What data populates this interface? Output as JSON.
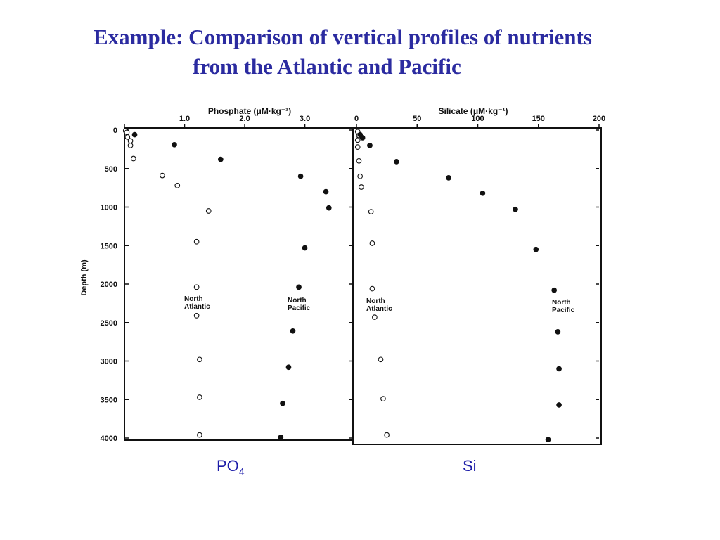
{
  "slide": {
    "title_line_1": "Example: Comparison of vertical profiles of nutrients",
    "title_line_2": "from the Atlantic and Pacific",
    "caption_left": "PO",
    "caption_left_sub": "4",
    "caption_right": "Si"
  },
  "colors": {
    "title": "#2b2ba0",
    "caption": "#1c1ca8",
    "ink": "#111111"
  },
  "chart_data": [
    {
      "type": "scatter",
      "title": "",
      "xlabel": "Phosphate (μM·kg⁻¹)",
      "ylabel": "Depth (m)",
      "xlim": [
        0,
        3.8
      ],
      "ylim": [
        4000,
        0
      ],
      "x_axis_position": "top",
      "x_ticks": [
        0,
        1.0,
        2.0,
        3.0
      ],
      "x_tick_labels": [
        "",
        "1.0",
        "2.0",
        "3.0"
      ],
      "y_ticks": [
        0,
        500,
        1000,
        1500,
        2000,
        2500,
        3000,
        3500,
        4000
      ],
      "y_tick_labels": [
        "0",
        "500",
        "1000",
        "1500",
        "2000",
        "2500",
        "3000",
        "3500",
        "4000"
      ],
      "grid": false,
      "series": [
        {
          "name": "North Atlantic",
          "marker": "open-circle",
          "points": [
            {
              "x": 0.02,
              "y": 10
            },
            {
              "x": 0.04,
              "y": 30
            },
            {
              "x": 0.05,
              "y": 90
            },
            {
              "x": 0.1,
              "y": 140
            },
            {
              "x": 0.1,
              "y": 200
            },
            {
              "x": 0.15,
              "y": 370
            },
            {
              "x": 0.63,
              "y": 590
            },
            {
              "x": 0.88,
              "y": 720
            },
            {
              "x": 1.4,
              "y": 1050
            },
            {
              "x": 1.2,
              "y": 1450
            },
            {
              "x": 1.2,
              "y": 2040
            },
            {
              "x": 1.2,
              "y": 2410
            },
            {
              "x": 1.25,
              "y": 2980
            },
            {
              "x": 1.25,
              "y": 3470
            },
            {
              "x": 1.25,
              "y": 3960
            }
          ]
        },
        {
          "name": "North Pacific",
          "marker": "filled-circle",
          "points": [
            {
              "x": 0.17,
              "y": 60
            },
            {
              "x": 0.83,
              "y": 190
            },
            {
              "x": 1.6,
              "y": 380
            },
            {
              "x": 2.93,
              "y": 600
            },
            {
              "x": 3.35,
              "y": 800
            },
            {
              "x": 3.4,
              "y": 1010
            },
            {
              "x": 3.0,
              "y": 1530
            },
            {
              "x": 2.9,
              "y": 2040
            },
            {
              "x": 2.8,
              "y": 2610
            },
            {
              "x": 2.73,
              "y": 3080
            },
            {
              "x": 2.63,
              "y": 3550
            },
            {
              "x": 2.6,
              "y": 3990
            }
          ]
        }
      ],
      "annotations": [
        {
          "text": "North Atlantic",
          "near": "North Atlantic series"
        },
        {
          "text": "North Pacific",
          "near": "North Pacific series"
        }
      ]
    },
    {
      "type": "scatter",
      "title": "",
      "xlabel": "Silicate (μM·kg⁻¹)",
      "ylabel": "Depth (m)",
      "xlim": [
        0,
        200
      ],
      "ylim": [
        4000,
        0
      ],
      "x_axis_position": "top",
      "x_ticks": [
        0,
        50,
        100,
        150,
        200
      ],
      "x_tick_labels": [
        "0",
        "50",
        "100",
        "150",
        "200"
      ],
      "y_ticks": [
        0,
        500,
        1000,
        1500,
        2000,
        2500,
        3000,
        3500,
        4000
      ],
      "grid": false,
      "series": [
        {
          "name": "North Atlantic",
          "marker": "open-circle",
          "points": [
            {
              "x": 1,
              "y": 20
            },
            {
              "x": 2,
              "y": 70
            },
            {
              "x": 1,
              "y": 130
            },
            {
              "x": 1,
              "y": 220
            },
            {
              "x": 2,
              "y": 400
            },
            {
              "x": 3,
              "y": 600
            },
            {
              "x": 4,
              "y": 740
            },
            {
              "x": 12,
              "y": 1060
            },
            {
              "x": 13,
              "y": 1470
            },
            {
              "x": 13,
              "y": 2060
            },
            {
              "x": 15,
              "y": 2430
            },
            {
              "x": 20,
              "y": 2980
            },
            {
              "x": 22,
              "y": 3490
            },
            {
              "x": 25,
              "y": 3960
            }
          ]
        },
        {
          "name": "North Pacific",
          "marker": "filled-circle",
          "points": [
            {
              "x": 5,
              "y": 100
            },
            {
              "x": 3,
              "y": 60
            },
            {
              "x": 11,
              "y": 200
            },
            {
              "x": 33,
              "y": 410
            },
            {
              "x": 76,
              "y": 620
            },
            {
              "x": 104,
              "y": 820
            },
            {
              "x": 131,
              "y": 1030
            },
            {
              "x": 148,
              "y": 1550
            },
            {
              "x": 163,
              "y": 2080
            },
            {
              "x": 166,
              "y": 2620
            },
            {
              "x": 167,
              "y": 3100
            },
            {
              "x": 167,
              "y": 3570
            },
            {
              "x": 158,
              "y": 4020
            }
          ]
        }
      ],
      "annotations": [
        {
          "text": "North Atlantic",
          "near": "North Atlantic series"
        },
        {
          "text": "North Pacific",
          "near": "North Pacific series"
        }
      ]
    }
  ]
}
